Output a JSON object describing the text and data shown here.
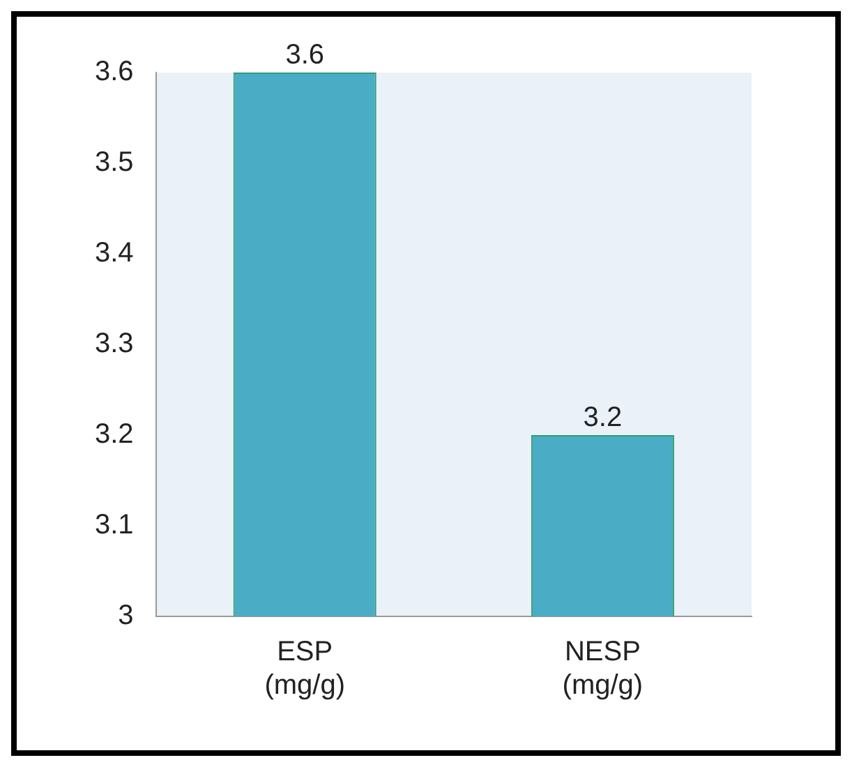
{
  "chart_data": {
    "type": "bar",
    "categories": [
      "ESP (mg/g)",
      "NESP (mg/g)"
    ],
    "values": [
      3.6,
      3.2
    ],
    "color": "#4bacc6",
    "ylim": [
      3,
      3.6
    ],
    "yticks": [
      3,
      3.1,
      3.2,
      3.3,
      3.4,
      3.5,
      3.6
    ],
    "data_labels": true,
    "grid": false,
    "legend": false
  }
}
